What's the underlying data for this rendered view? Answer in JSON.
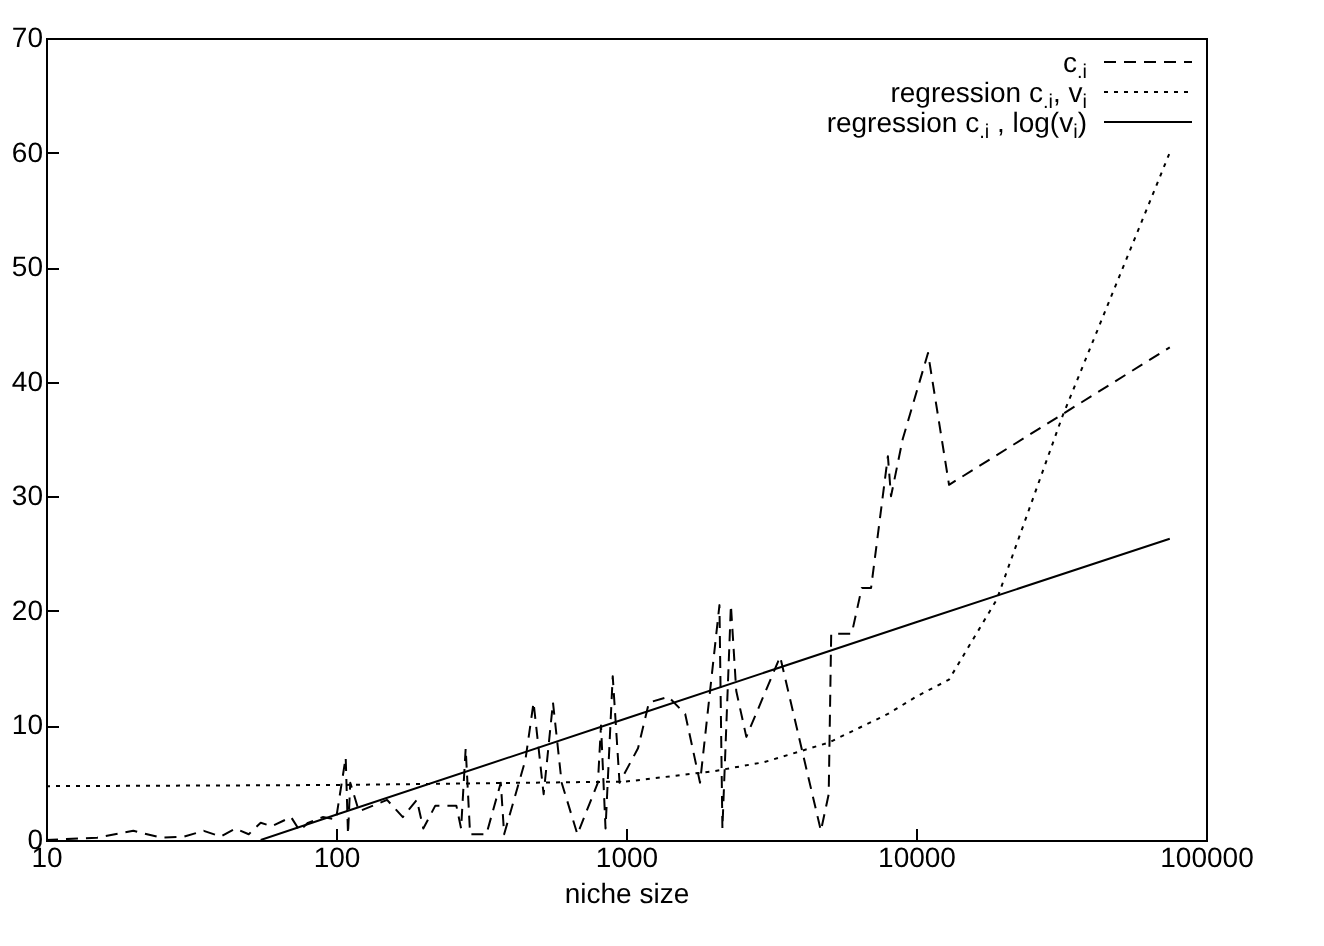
{
  "chart_data": {
    "type": "line",
    "xlabel": "niche size",
    "log": "x",
    "xlim": [
      10,
      100000
    ],
    "xticks": [
      10,
      100,
      1000,
      10000,
      100000
    ],
    "ylim": [
      0,
      70
    ],
    "yticks": [
      0,
      10,
      20,
      30,
      40,
      50,
      60,
      70
    ],
    "legend": "top right",
    "grid": false,
    "marker": "none",
    "series": [
      {
        "name": "c$_{.i}$",
        "color": "#000000",
        "line_style": "dashed",
        "x": [
          10,
          15,
          20,
          25,
          30,
          35,
          40,
          45,
          50,
          55,
          60,
          70,
          75,
          80,
          90,
          100,
          108,
          110,
          112,
          120,
          150,
          170,
          190,
          200,
          220,
          260,
          270,
          280,
          290,
          330,
          370,
          380,
          450,
          480,
          520,
          560,
          600,
          680,
          800,
          820,
          850,
          900,
          950,
          1100,
          1200,
          1400,
          1600,
          1800,
          2100,
          2150,
          2300,
          2400,
          2600,
          3400,
          4700,
          5000,
          5100,
          6000,
          6500,
          7000,
          8000,
          8200,
          9000,
          11000,
          13000,
          75000
        ],
        "values": [
          0,
          0.2,
          0.8,
          0.2,
          0.3,
          0.8,
          0.3,
          1,
          0.5,
          1.5,
          1.2,
          2,
          0.8,
          1.5,
          2,
          1.8,
          7.2,
          0.5,
          5,
          2.5,
          3.5,
          2,
          3.5,
          1,
          3,
          3,
          1,
          8,
          0.5,
          0.5,
          5,
          0.5,
          7,
          12,
          4,
          12,
          5,
          0.5,
          5,
          10,
          1,
          14.3,
          5,
          8,
          12,
          12.5,
          11,
          5,
          20.5,
          1,
          20.5,
          13,
          9,
          16,
          0.8,
          4,
          18,
          18,
          22,
          22,
          33.5,
          30,
          35,
          42.5,
          31,
          43
        ]
      },
      {
        "name": "regression c$_{.i}$, v$_{i}$",
        "color": "#000000",
        "line_style": "dotted",
        "x": [
          10,
          100,
          1000,
          2000,
          3000,
          5000,
          8000,
          10000,
          13000,
          19000,
          32000,
          75000
        ],
        "values": [
          4.7,
          4.8,
          5.1,
          6,
          6.8,
          8.5,
          11,
          12.5,
          14,
          21,
          37,
          60
        ]
      },
      {
        "name": "regression c$_{.i}$ , log(v$_{i}$)",
        "color": "#000000",
        "line_style": "solid",
        "x": [
          55,
          100,
          1000,
          10000,
          75000
        ],
        "values": [
          0,
          2.2,
          10.6,
          19,
          26.3
        ]
      }
    ]
  }
}
